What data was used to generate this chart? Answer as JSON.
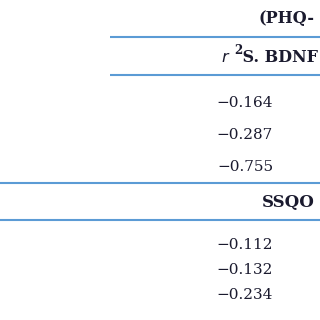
{
  "header_right": "(PHQ-",
  "section1_header_italic": "r",
  "section1_header_super": "2",
  "section1_header_rest": " S. BDNF",
  "section1_values": [
    "−0.164",
    "−0.287",
    "−0.755"
  ],
  "section2_header": "SSQO",
  "section2_values": [
    "−0.112",
    "−0.132",
    "−0.234"
  ],
  "bg_color": "#ffffff",
  "line_color": "#5b9bd5",
  "text_color": "#1a1a2e",
  "fs_header": 11.5,
  "fs_values": 11,
  "fs_section": 12
}
